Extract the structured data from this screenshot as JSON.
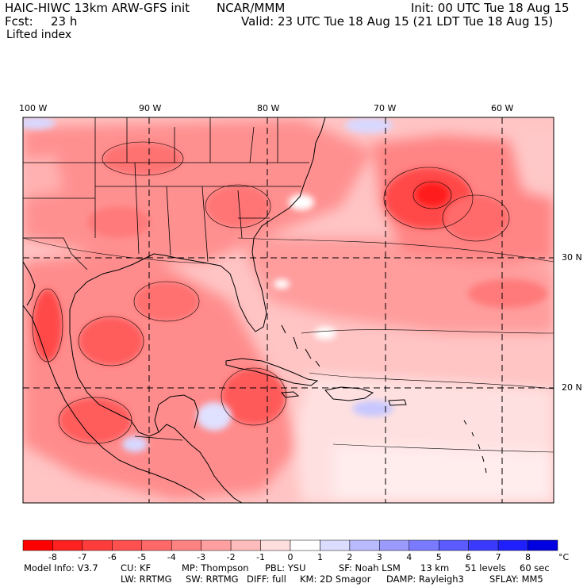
{
  "header": {
    "title": "HAIC-HIWC 13km ARW-GFS init",
    "org": "NCAR/MMM",
    "init": "Init: 00 UTC Tue 18 Aug 15",
    "fcst_label": "Fcst:",
    "fcst_value": "23 h",
    "valid": "Valid: 23 UTC Tue 18 Aug 15 (21 LDT Tue 18 Aug 15)",
    "field": "Lifted index"
  },
  "axes": {
    "lon_labels": [
      "100 W",
      "90 W",
      "80 W",
      "70 W",
      "60 W"
    ],
    "lat_labels": [
      "30 N",
      "20 N"
    ]
  },
  "colors": {
    "neg_max": "#ff1a1a",
    "neg_mid": "#ff8080",
    "near_zero": "#ffffff",
    "pos_mid": "#8c8cff",
    "pos_max": "#1010e0",
    "contour": "#000000"
  },
  "colorbar": {
    "tick_labels": [
      "-8",
      "-7",
      "-6",
      "-5",
      "-4",
      "-3",
      "-2",
      "-1",
      "0",
      "1",
      "2",
      "3",
      "4",
      "5",
      "6",
      "7",
      "8"
    ],
    "unit": "°C",
    "swatches": [
      "#ff0000",
      "#ff2020",
      "#ff3c3c",
      "#ff5050",
      "#ff6868",
      "#ff8282",
      "#ffa0a0",
      "#ffbcbc",
      "#ffdede",
      "#ffffff",
      "#dcdcff",
      "#babaff",
      "#9a9aff",
      "#7a7aff",
      "#5a5aff",
      "#3a3aff",
      "#2020ff",
      "#0000e0"
    ]
  },
  "model_info": {
    "line1": [
      "Model Info: V3.7",
      "CU: KF",
      "MP: Thompson",
      "PBL: YSU",
      "SF: Noah LSM",
      "13 km",
      "51 levels",
      "60 sec"
    ],
    "line2": [
      "LW: RRTMG",
      "SW: RRTMG",
      "DIFF: full",
      "KM: 2D Smagor",
      "DAMP: Rayleigh3",
      "SFLAY: MM5"
    ]
  }
}
